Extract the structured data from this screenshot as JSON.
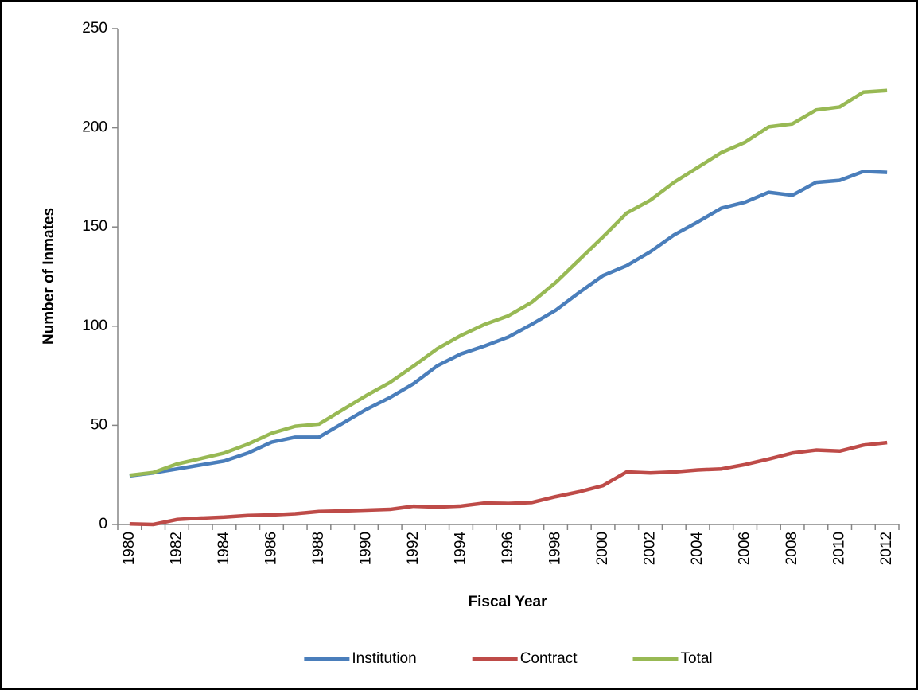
{
  "chart_data": {
    "type": "line",
    "y_label": "Number of Inmates",
    "x_label": "Fiscal Year",
    "categories": [
      "1980",
      null,
      "1982",
      null,
      "1984",
      null,
      "1986",
      null,
      "1988",
      null,
      "1990",
      null,
      "1992",
      null,
      "1994",
      null,
      "1996",
      null,
      "1998",
      null,
      "2000",
      null,
      "2002",
      null,
      "2004",
      null,
      "2006",
      null,
      "2008",
      null,
      "2010",
      null,
      "2012"
    ],
    "series": [
      {
        "name": "Institution",
        "color": "#4a7ebb",
        "values": [
          24.5,
          26,
          28,
          30,
          32,
          36,
          41.5,
          44,
          44,
          51,
          58,
          64,
          71,
          80,
          86,
          90,
          94.5,
          101,
          108,
          117,
          125.5,
          130.5,
          137.5,
          146,
          152.5,
          159.5,
          162.5,
          167.5,
          166,
          172.5,
          173.5,
          178,
          177.5
        ]
      },
      {
        "name": "Contract",
        "color": "#be4b48",
        "values": [
          0.3,
          0,
          2.5,
          3.2,
          3.7,
          4.5,
          4.8,
          5.4,
          6.5,
          6.8,
          7.2,
          7.6,
          9.2,
          8.8,
          9.3,
          10.8,
          10.6,
          11.1,
          14,
          16.5,
          19.6,
          26.5,
          26,
          26.5,
          27.5,
          28,
          30.2,
          33,
          36,
          37.5,
          37,
          40,
          41.3
        ]
      },
      {
        "name": "Total",
        "color": "#98b954",
        "values": [
          24.8,
          26.2,
          30.5,
          33.2,
          36,
          40.5,
          46,
          49.5,
          50.6,
          57.8,
          65,
          71.6,
          79.9,
          88.6,
          95.3,
          100.9,
          105.2,
          112.1,
          122,
          133.5,
          145,
          157,
          163.5,
          172.5,
          180,
          187.5,
          192.7,
          200.5,
          202,
          209,
          210.5,
          218,
          218.8
        ]
      }
    ],
    "ylim": [
      0,
      250
    ],
    "yticks": [
      0,
      50,
      100,
      150,
      200,
      250
    ],
    "grid": false,
    "legend": "bottom"
  }
}
